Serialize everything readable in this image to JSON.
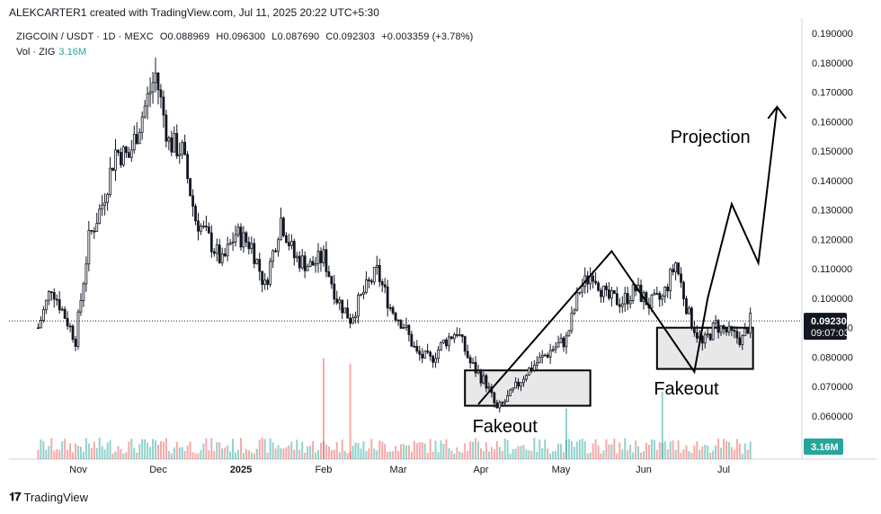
{
  "header": {
    "attribution": "ALEKCARTER1 created with TradingView.com, Jul 11, 2025 20:22 UTC+5:30"
  },
  "legend": {
    "symbol": "ZIGCOIN / USDT · 1D · MEXC",
    "open": "O0.088969",
    "high": "H0.096300",
    "low": "L0.087690",
    "close": "C0.092303",
    "change": "+0.003359 (+3.78%)",
    "vol_label": "Vol · ZIG",
    "vol_value": "3.16M"
  },
  "price_axis": {
    "ticks": [
      "0.190000",
      "0.180000",
      "0.170000",
      "0.160000",
      "0.150000",
      "0.140000",
      "0.130000",
      "0.120000",
      "0.110000",
      "0.100000",
      "0.090000",
      "0.080000",
      "0.070000",
      "0.060000"
    ],
    "last_price": "0.092303",
    "countdown": "09:07:03",
    "volume_badge": "3.16M"
  },
  "time_axis": {
    "ticks": [
      "Nov",
      "Dec",
      "2025",
      "Feb",
      "Mar",
      "Apr",
      "May",
      "Jun",
      "Jul"
    ]
  },
  "annotations": {
    "fakeout_left": "Fakeout",
    "fakeout_right": "Fakeout",
    "projection": "Projection"
  },
  "footer": {
    "brand": "TradingView"
  },
  "colors": {
    "candle": "#131722",
    "volume_up": "#26a69a",
    "volume_down": "#ef5350",
    "box_fill": "#e8e8e8"
  },
  "chart_data": {
    "type": "candlestick",
    "title": "ZIGCOIN / USDT · 1D · MEXC",
    "ylim": [
      0.06,
      0.19
    ],
    "x_ticks": [
      "Nov",
      "Dec",
      "2025",
      "Feb",
      "Mar",
      "Apr",
      "May",
      "Jun",
      "Jul"
    ],
    "close_path": [
      {
        "date": "2024-10-17",
        "close": 0.09
      },
      {
        "date": "2024-10-22",
        "close": 0.104
      },
      {
        "date": "2024-10-27",
        "close": 0.094
      },
      {
        "date": "2024-10-31",
        "close": 0.086
      },
      {
        "date": "2024-11-05",
        "close": 0.12
      },
      {
        "date": "2024-11-10",
        "close": 0.132
      },
      {
        "date": "2024-11-15",
        "close": 0.15
      },
      {
        "date": "2024-11-20",
        "close": 0.148
      },
      {
        "date": "2024-11-26",
        "close": 0.165
      },
      {
        "date": "2024-11-30",
        "close": 0.176
      },
      {
        "date": "2024-12-05",
        "close": 0.153
      },
      {
        "date": "2024-12-10",
        "close": 0.15
      },
      {
        "date": "2024-12-15",
        "close": 0.127
      },
      {
        "date": "2024-12-20",
        "close": 0.12
      },
      {
        "date": "2024-12-25",
        "close": 0.112
      },
      {
        "date": "2024-12-30",
        "close": 0.122
      },
      {
        "date": "2025-01-05",
        "close": 0.118
      },
      {
        "date": "2025-01-10",
        "close": 0.104
      },
      {
        "date": "2025-01-16",
        "close": 0.127
      },
      {
        "date": "2025-01-21",
        "close": 0.114
      },
      {
        "date": "2025-01-27",
        "close": 0.111
      },
      {
        "date": "2025-02-01",
        "close": 0.114
      },
      {
        "date": "2025-02-06",
        "close": 0.1
      },
      {
        "date": "2025-02-11",
        "close": 0.093
      },
      {
        "date": "2025-02-16",
        "close": 0.102
      },
      {
        "date": "2025-02-21",
        "close": 0.109
      },
      {
        "date": "2025-02-26",
        "close": 0.097
      },
      {
        "date": "2025-03-03",
        "close": 0.091
      },
      {
        "date": "2025-03-08",
        "close": 0.081
      },
      {
        "date": "2025-03-13",
        "close": 0.079
      },
      {
        "date": "2025-03-18",
        "close": 0.085
      },
      {
        "date": "2025-03-23",
        "close": 0.089
      },
      {
        "date": "2025-03-28",
        "close": 0.078
      },
      {
        "date": "2025-04-03",
        "close": 0.071
      },
      {
        "date": "2025-04-07",
        "close": 0.062
      },
      {
        "date": "2025-04-12",
        "close": 0.067
      },
      {
        "date": "2025-04-18",
        "close": 0.075
      },
      {
        "date": "2025-04-23",
        "close": 0.079
      },
      {
        "date": "2025-04-28",
        "close": 0.083
      },
      {
        "date": "2025-05-03",
        "close": 0.086
      },
      {
        "date": "2025-05-08",
        "close": 0.103
      },
      {
        "date": "2025-05-13",
        "close": 0.109
      },
      {
        "date": "2025-05-18",
        "close": 0.1
      },
      {
        "date": "2025-05-24",
        "close": 0.099
      },
      {
        "date": "2025-05-29",
        "close": 0.103
      },
      {
        "date": "2025-06-03",
        "close": 0.098
      },
      {
        "date": "2025-06-08",
        "close": 0.1
      },
      {
        "date": "2025-06-13",
        "close": 0.112
      },
      {
        "date": "2025-06-18",
        "close": 0.094
      },
      {
        "date": "2025-06-23",
        "close": 0.084
      },
      {
        "date": "2025-06-28",
        "close": 0.091
      },
      {
        "date": "2025-07-03",
        "close": 0.088
      },
      {
        "date": "2025-07-08",
        "close": 0.086
      },
      {
        "date": "2025-07-11",
        "close": 0.092303
      }
    ],
    "volume_spikes": [
      {
        "date": "2025-02-01",
        "dir": "down",
        "rel": 0.9
      },
      {
        "date": "2025-02-11",
        "dir": "down",
        "rel": 0.85
      },
      {
        "date": "2025-05-03",
        "dir": "up",
        "rel": 0.45
      },
      {
        "date": "2025-06-08",
        "dir": "up",
        "rel": 0.6
      }
    ],
    "boxes": [
      {
        "label": "Fakeout",
        "x0": "2025-03-26",
        "x1": "2025-05-12",
        "y0": 0.0635,
        "y1": 0.0755
      },
      {
        "label": "Fakeout",
        "x0": "2025-06-06",
        "x1": "2025-07-12",
        "y0": 0.076,
        "y1": 0.09
      }
    ],
    "projection_path": [
      {
        "date": "2025-03-31",
        "price": 0.064
      },
      {
        "date": "2025-05-20",
        "price": 0.116
      },
      {
        "date": "2025-06-20",
        "price": 0.075
      },
      {
        "date": "2025-06-25",
        "price": 0.1
      },
      {
        "date": "2025-07-04",
        "price": 0.132
      },
      {
        "date": "2025-07-14",
        "price": 0.112
      },
      {
        "date": "2025-07-21",
        "price": 0.165
      }
    ]
  }
}
